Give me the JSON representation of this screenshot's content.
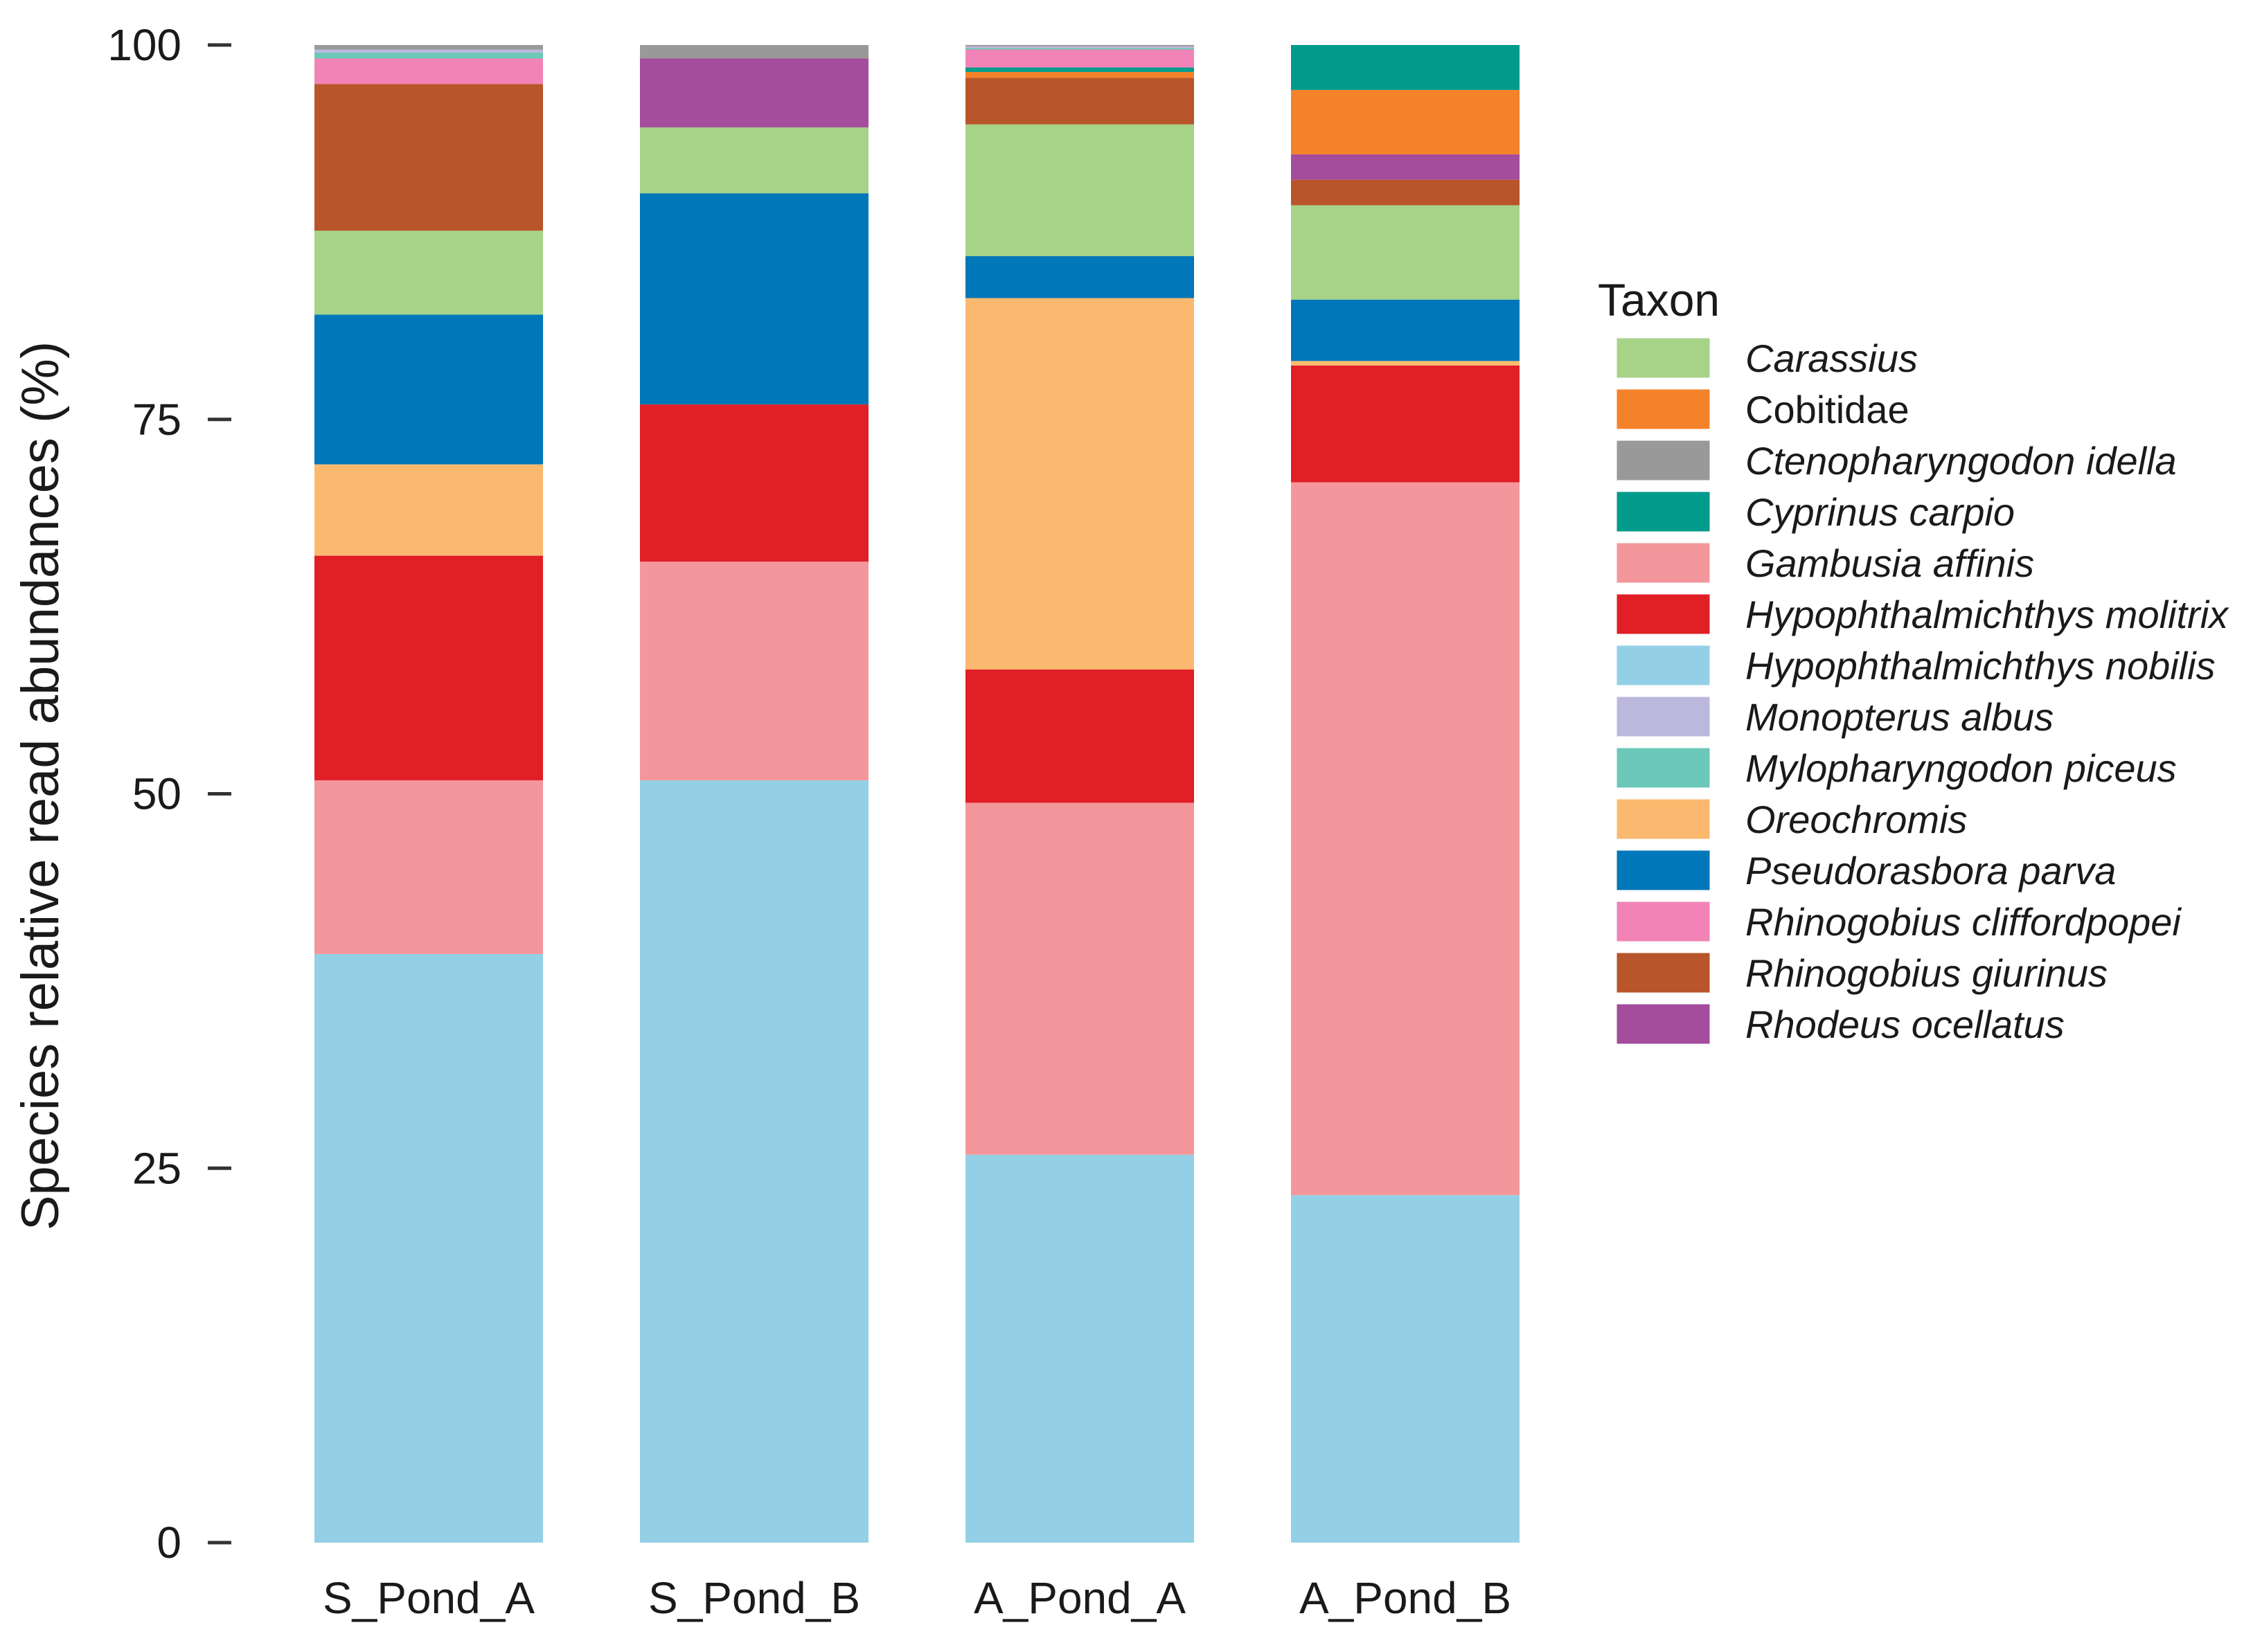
{
  "chart_data": {
    "type": "bar",
    "stacked": true,
    "title": "",
    "xlabel": "",
    "ylabel": "Species relative read abundances (%)",
    "ylim": [
      0,
      100
    ],
    "yticks": [
      0,
      25,
      50,
      75,
      100
    ],
    "categories": [
      "S_Pond_A",
      "S_Pond_B",
      "A_Pond_A",
      "A_Pond_B"
    ],
    "legend_title": "Taxon",
    "legend_position": "right",
    "legend_entries": [
      {
        "name": "Carassius",
        "color": "#a6d388",
        "italic": true
      },
      {
        "name": "Cobitidae",
        "color": "#f4822a",
        "italic": false
      },
      {
        "name": "Ctenopharyngodon idella",
        "color": "#999999",
        "italic": true
      },
      {
        "name": "Cyprinus carpio",
        "color": "#009b8b",
        "italic": true
      },
      {
        "name": "Gambusia affinis",
        "color": "#f4979c",
        "italic": true
      },
      {
        "name": "Hypophthalmichthys molitrix",
        "color": "#e11f26",
        "italic": true
      },
      {
        "name": "Hypophthalmichthys nobilis",
        "color": "#93d0e5",
        "italic": true
      },
      {
        "name": "Monopterus albus",
        "color": "#bcb8dc",
        "italic": true
      },
      {
        "name": "Mylopharyngodon piceus",
        "color": "#6cc8b8",
        "italic": true
      },
      {
        "name": "Oreochromis",
        "color": "#fbb970",
        "italic": true
      },
      {
        "name": "Pseudorasbora parva",
        "color": "#0077b8",
        "italic": true
      },
      {
        "name": "Rhinogobius cliffordpopei",
        "color": "#f283b6",
        "italic": true
      },
      {
        "name": "Rhinogobius giurinus",
        "color": "#b8552a",
        "italic": true
      },
      {
        "name": "Rhodeus ocellatus",
        "color": "#a44d9c",
        "italic": true
      }
    ],
    "stack_order": [
      "Hypophthalmichthys nobilis",
      "Gambusia affinis",
      "Hypophthalmichthys molitrix",
      "Oreochromis",
      "Pseudorasbora parva",
      "Carassius",
      "Rhinogobius giurinus",
      "Rhodeus ocellatus",
      "Cobitidae",
      "Cyprinus carpio",
      "Rhinogobius cliffordpopei",
      "Mylopharyngodon piceus",
      "Monopterus albus",
      "Ctenopharyngodon idella"
    ],
    "series": [
      {
        "name": "Hypophthalmichthys nobilis",
        "values": [
          39.3,
          50.9,
          25.9,
          23.2
        ]
      },
      {
        "name": "Gambusia affinis",
        "values": [
          11.6,
          14.6,
          23.5,
          47.6
        ]
      },
      {
        "name": "Hypophthalmichthys molitrix",
        "values": [
          15.0,
          10.5,
          8.9,
          7.8
        ]
      },
      {
        "name": "Oreochromis",
        "values": [
          6.1,
          0.0,
          24.8,
          0.3
        ]
      },
      {
        "name": "Pseudorasbora parva",
        "values": [
          10.0,
          14.1,
          2.8,
          4.1
        ]
      },
      {
        "name": "Carassius",
        "values": [
          5.6,
          4.4,
          8.8,
          6.3
        ]
      },
      {
        "name": "Rhinogobius giurinus",
        "values": [
          9.8,
          0.0,
          3.1,
          1.7
        ]
      },
      {
        "name": "Rhodeus ocellatus",
        "values": [
          0.0,
          4.6,
          0.0,
          1.7
        ]
      },
      {
        "name": "Cobitidae",
        "values": [
          0.0,
          0.0,
          0.4,
          4.3
        ]
      },
      {
        "name": "Cyprinus carpio",
        "values": [
          0.0,
          0.0,
          0.3,
          3.0
        ]
      },
      {
        "name": "Rhinogobius cliffordpopei",
        "values": [
          1.7,
          0.0,
          1.2,
          0.0
        ]
      },
      {
        "name": "Mylopharyngodon piceus",
        "values": [
          0.4,
          0.0,
          0.1,
          0.0
        ]
      },
      {
        "name": "Monopterus albus",
        "values": [
          0.2,
          0.0,
          0.1,
          0.0
        ]
      },
      {
        "name": "Ctenopharyngodon idella",
        "values": [
          0.3,
          0.9,
          0.1,
          0.0
        ]
      }
    ]
  }
}
